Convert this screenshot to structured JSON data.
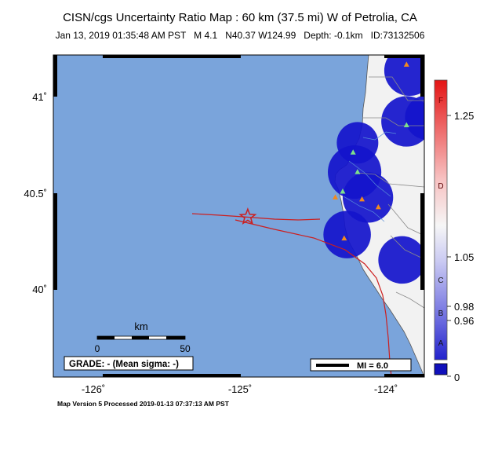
{
  "title": "CISN/cgs Uncertainty Ratio Map : 60 km (37.5 mi) W of Petrolia, CA",
  "event": {
    "datetime": "Jan 13, 2019 01:35:48 AM PST",
    "magnitude": "M 4.1",
    "location": "N40.37 W124.99",
    "depth": "Depth: -0.1km",
    "id": "ID:73132506"
  },
  "map": {
    "lon_range": [
      -126.3,
      -123.8
    ],
    "lat_range": [
      39.55,
      41.2
    ],
    "lat_ticks": [
      {
        "value": 41,
        "label": "41˚"
      },
      {
        "value": 40.5,
        "label": "40.5˚"
      },
      {
        "value": 40,
        "label": "40˚"
      }
    ],
    "lon_ticks": [
      {
        "value": -126,
        "label": "-126˚"
      },
      {
        "value": -125,
        "label": "-125˚"
      },
      {
        "value": -124,
        "label": "-124˚"
      }
    ],
    "epicenter": {
      "lon": -124.99,
      "lat": 40.37
    },
    "stations": [
      {
        "lon": -123.92,
        "lat": 41.15,
        "color": "#f28a1e"
      },
      {
        "lon": -123.92,
        "lat": 40.84,
        "color": "#7ee08a"
      },
      {
        "lon": -124.28,
        "lat": 40.7,
        "color": "#7ee08a"
      },
      {
        "lon": -124.25,
        "lat": 40.6,
        "color": "#7ee08a"
      },
      {
        "lon": -124.35,
        "lat": 40.5,
        "color": "#7ee08a"
      },
      {
        "lon": -124.4,
        "lat": 40.47,
        "color": "#f28a1e"
      },
      {
        "lon": -124.22,
        "lat": 40.46,
        "color": "#f28a1e"
      },
      {
        "lon": -124.11,
        "lat": 40.42,
        "color": "#f28a1e"
      },
      {
        "lon": -124.34,
        "lat": 40.26,
        "color": "#f28a1e"
      }
    ],
    "uncertainty_zones": [
      {
        "lon": -123.9,
        "lat": 41.12,
        "radius_deg": 0.17
      },
      {
        "lon": -123.92,
        "lat": 40.86,
        "radius_deg": 0.17
      },
      {
        "lon": -124.25,
        "lat": 40.75,
        "radius_deg": 0.14
      },
      {
        "lon": -124.27,
        "lat": 40.6,
        "radius_deg": 0.18
      },
      {
        "lon": -124.18,
        "lat": 40.47,
        "radius_deg": 0.17
      },
      {
        "lon": -124.32,
        "lat": 40.28,
        "radius_deg": 0.16
      },
      {
        "lon": -123.95,
        "lat": 40.15,
        "radius_deg": 0.16
      },
      {
        "lon": -123.78,
        "lat": 40.88,
        "radius_deg": 0.15
      }
    ],
    "colors": {
      "ocean": "#7aa4db",
      "land": "#f2f2f2",
      "zone": "#1414cc",
      "fault": "#cc1f1f"
    }
  },
  "scale_bar": {
    "unit": "km",
    "ticks": [
      "0",
      "50"
    ]
  },
  "grade": "GRADE: - (Mean sigma: -)",
  "mi_legend": "MI = 6.0",
  "colorbar": {
    "right_labels": [
      "1.25",
      "1.05",
      "0.98",
      "0.96",
      "0"
    ],
    "letters": [
      "F",
      "D",
      "C",
      "B",
      "A"
    ]
  },
  "footer": "Map Version 5 Processed 2019-01-13 07:37:13 AM PST"
}
